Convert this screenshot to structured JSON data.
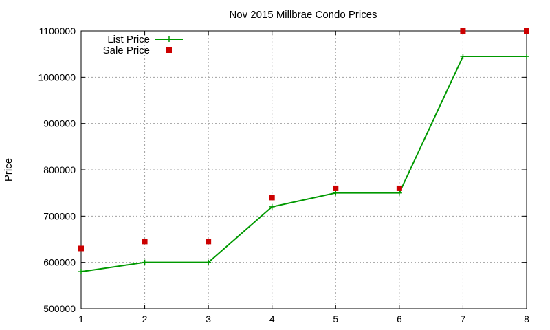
{
  "chart_data": {
    "type": "line",
    "title": "Nov 2015 Millbrae Condo Prices",
    "xlabel": "",
    "ylabel": "Price",
    "x": [
      1,
      2,
      3,
      4,
      5,
      6,
      7,
      8
    ],
    "xlim": [
      1,
      8
    ],
    "ylim": [
      500000,
      1100000
    ],
    "xticks": [
      "1",
      "2",
      "3",
      "4",
      "5",
      "6",
      "7",
      "8"
    ],
    "yticks": [
      "500000",
      "600000",
      "700000",
      "800000",
      "900000",
      "1000000",
      "1100000"
    ],
    "grid": true,
    "legend_position": "top-left",
    "series": [
      {
        "name": "List Price",
        "style": "line-points",
        "marker": "plus",
        "color": "#009900",
        "values": [
          580000,
          600000,
          600000,
          720000,
          750000,
          750000,
          1045000,
          1045000
        ]
      },
      {
        "name": "Sale Price",
        "style": "points",
        "marker": "square",
        "color": "#cc0000",
        "values": [
          630000,
          645000,
          645000,
          740000,
          760000,
          760000,
          1100000,
          1100000
        ]
      }
    ]
  }
}
